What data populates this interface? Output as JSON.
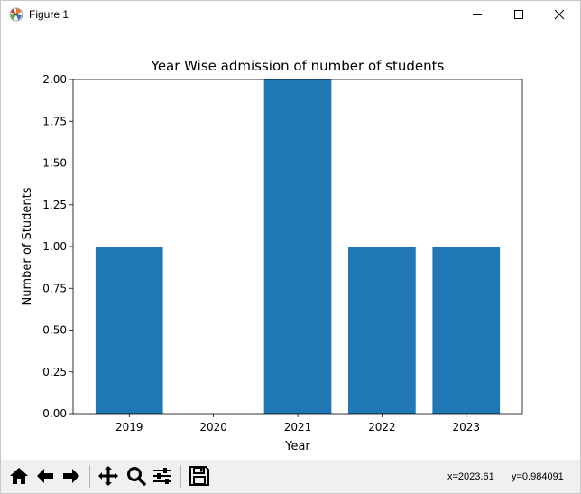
{
  "window": {
    "title": "Figure 1"
  },
  "toolbar": {
    "buttons": [
      "home-icon",
      "back-arrow-icon",
      "forward-arrow-icon",
      "pan-icon",
      "zoom-icon",
      "configure-subplots-icon",
      "save-icon"
    ],
    "x_readout": "x=2023.61",
    "y_readout": "y=0.984091"
  },
  "chart_data": {
    "type": "bar",
    "title": "Year Wise admission of number of students",
    "xlabel": "Year",
    "ylabel": "Number of Students",
    "categories": [
      "2019",
      "2020",
      "2021",
      "2022",
      "2023"
    ],
    "values": [
      1,
      0,
      2,
      1,
      1
    ],
    "ylim": [
      0,
      2.0
    ],
    "yticks": [
      "0.00",
      "0.25",
      "0.50",
      "0.75",
      "1.00",
      "1.25",
      "1.50",
      "1.75",
      "2.00"
    ],
    "bar_color": "#1f77b4",
    "grid": false
  }
}
